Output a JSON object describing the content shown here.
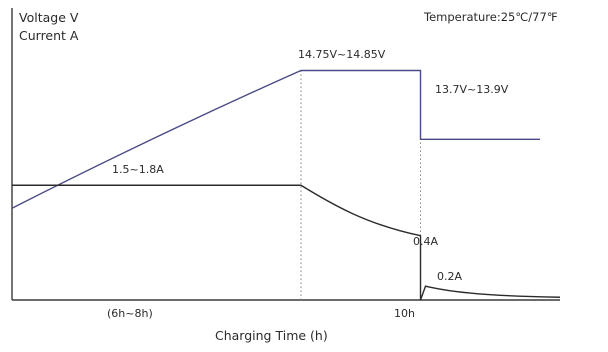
{
  "chart_data": {
    "type": "line",
    "title": "",
    "ylabel_lines": [
      "Voltage V",
      "Current A"
    ],
    "xlabel": "Charging Time (h)",
    "temperature_note": "Temperature:25℃/77℉",
    "x_tick_labels": [
      "(6h~8h)",
      "10h"
    ],
    "series": [
      {
        "name": "Voltage",
        "color": "#4a4a86",
        "points": [
          [
            0,
            0.4
          ],
          [
            1.5,
            0.75
          ],
          [
            2.9,
            1.0
          ],
          [
            4.1,
            1.0
          ],
          [
            4.1,
            0.7
          ],
          [
            5.3,
            0.7
          ]
        ]
      },
      {
        "name": "Current",
        "color": "#2b2b2b",
        "points": [
          [
            0,
            0.5
          ],
          [
            2.9,
            0.5
          ],
          [
            3.1,
            0.44
          ],
          [
            3.4,
            0.38
          ],
          [
            3.7,
            0.34
          ],
          [
            4.1,
            0.28
          ],
          [
            4.1,
            0.0
          ],
          [
            4.15,
            0.06
          ],
          [
            4.4,
            0.04
          ],
          [
            4.7,
            0.02
          ],
          [
            5.0,
            0.015
          ],
          [
            5.5,
            0.012
          ]
        ]
      }
    ],
    "annotations": {
      "voltage_peak": "14.75V~14.85V",
      "voltage_float": "13.7V~13.9V",
      "current_const": "1.5~1.8A",
      "current_end_main": "0.4A",
      "current_end_float": "0.2A"
    },
    "transition_lines": [
      "phase-1-to-2",
      "phase-2-to-3"
    ],
    "colors": {
      "voltage": "#4a4a86",
      "current": "#2b2b2b",
      "axis": "#3a3a3a",
      "dotted": "#8a8a8a"
    }
  }
}
